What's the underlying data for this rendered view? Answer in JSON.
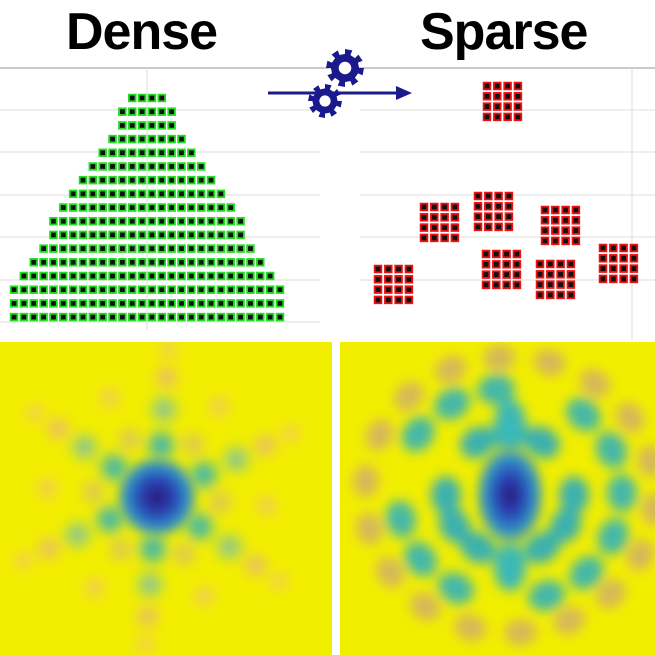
{
  "titles": {
    "dense": "Dense",
    "sparse": "Sparse"
  },
  "colors": {
    "dense_element": "#22dd22",
    "sparse_element": "#ee1111",
    "element_center": "#111111",
    "arrow": "#1a1a8c",
    "gear": "#1a1a8c",
    "grid": "#d0d0d0",
    "beam_background": "#f2ee00",
    "beam_peak": "#2a1a7a"
  },
  "icons": {
    "transform": "gear-icon",
    "arrow": "arrow-right-icon"
  },
  "dense_array": {
    "element_color": "green",
    "row_counts": [
      4,
      6,
      6,
      8,
      10,
      12,
      14,
      16,
      18,
      20,
      20,
      22,
      24,
      26,
      28,
      28,
      28
    ],
    "bottom_row_count": 28
  },
  "sparse_array": {
    "element_color": "red",
    "subarray_count": 8,
    "subarray_shape": "4x4"
  },
  "beam_patterns": {
    "dense": {
      "lobe_arms": 6,
      "description_free": true
    },
    "sparse": {
      "lobe_rings": 2
    }
  }
}
